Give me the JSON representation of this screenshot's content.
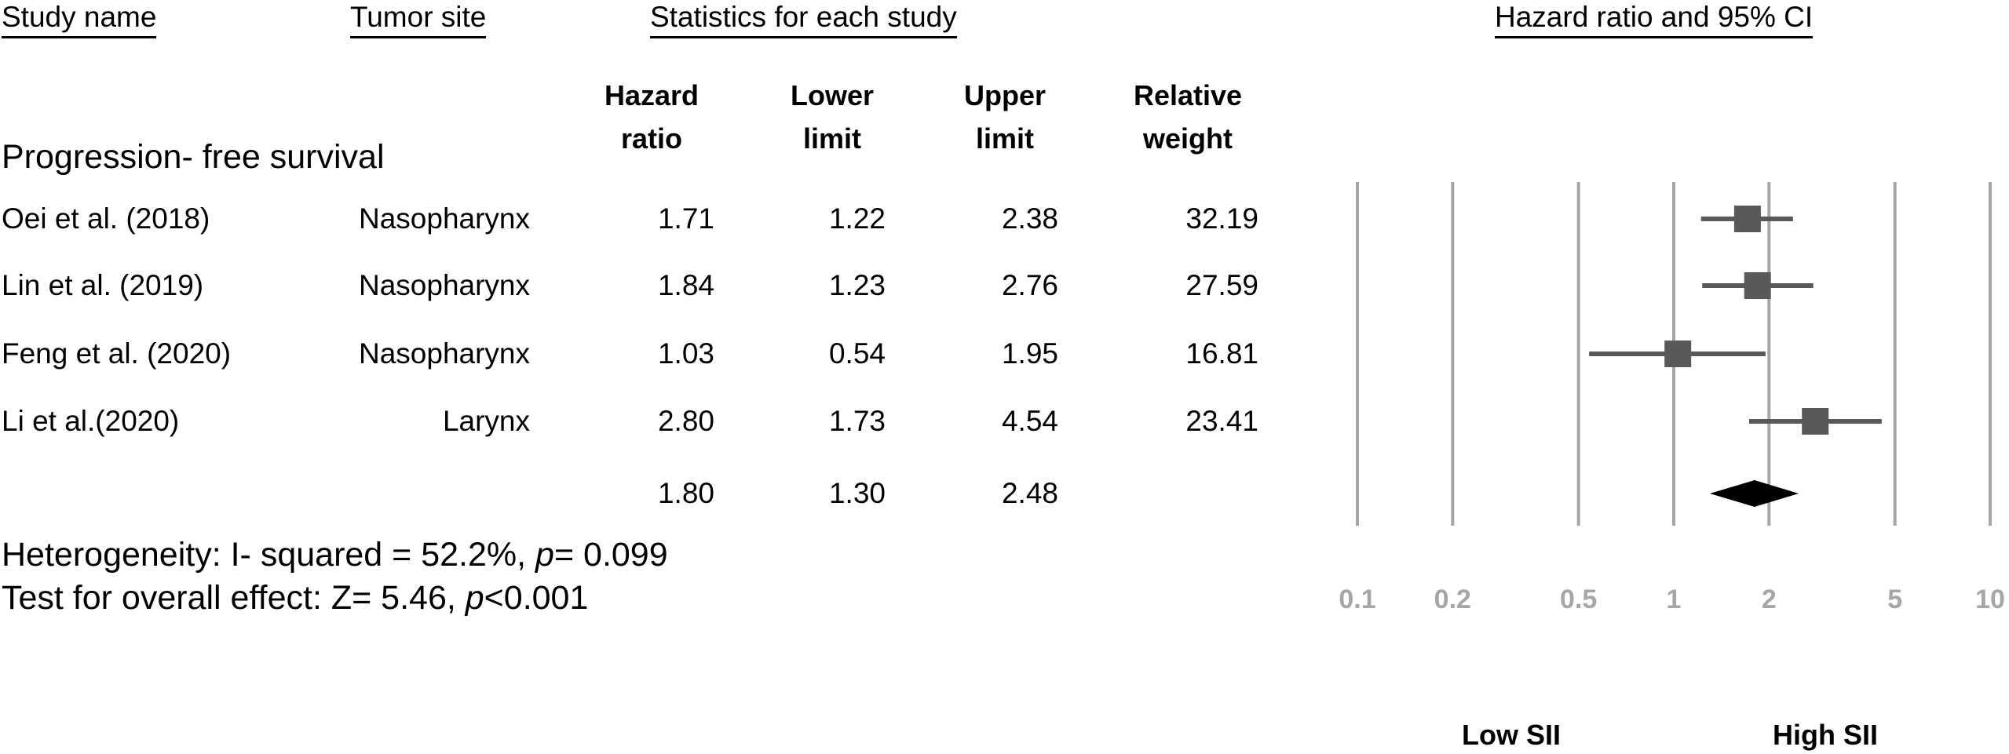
{
  "headers": {
    "study_name": "Study name",
    "tumor_site": "Tumor site",
    "statistics": "Statistics for each study",
    "ci": "Hazard ratio and 95% CI"
  },
  "columns": {
    "hr": [
      "Hazard",
      "ratio"
    ],
    "lower": [
      "Lower",
      "limit"
    ],
    "upper": [
      "Upper",
      "limit"
    ],
    "weight": [
      "Relative",
      "weight"
    ]
  },
  "section_title": "Progression- free survival",
  "heterogeneity": {
    "prefix": "Heterogeneity: I- squared = 52.2%, ",
    "p_label": "p",
    "p_value": "= 0.099"
  },
  "overall_effect": {
    "prefix": "Test for overall effect: Z= 5.46, ",
    "p_label": "p",
    "p_value": "<0.001"
  },
  "side_labels": {
    "left": "Low SII",
    "right": "High SII"
  },
  "chart_data": {
    "type": "forest",
    "x_scale": "log",
    "xlim": [
      0.1,
      10
    ],
    "x_ticks": [
      0.1,
      0.2,
      0.5,
      1,
      2,
      5,
      10
    ],
    "x_tick_labels": [
      "0.1",
      "0.2",
      "0.5",
      "1",
      "2",
      "5",
      "10"
    ],
    "grid": true,
    "studies": [
      {
        "name": "Oei et al. (2018)",
        "site": "Nasopharynx",
        "hr": 1.71,
        "lower": 1.22,
        "upper": 2.38,
        "weight": 32.19,
        "hr_text": "1.71",
        "lower_text": "1.22",
        "upper_text": "2.38",
        "weight_text": "32.19"
      },
      {
        "name": "Lin et al. (2019)",
        "site": "Nasopharynx",
        "hr": 1.84,
        "lower": 1.23,
        "upper": 2.76,
        "weight": 27.59,
        "hr_text": "1.84",
        "lower_text": "1.23",
        "upper_text": "2.76",
        "weight_text": "27.59"
      },
      {
        "name": "Feng et al. (2020)",
        "site": "Nasopharynx",
        "hr": 1.03,
        "lower": 0.54,
        "upper": 1.95,
        "weight": 16.81,
        "hr_text": "1.03",
        "lower_text": "0.54",
        "upper_text": "1.95",
        "weight_text": "16.81"
      },
      {
        "name": "Li et al.(2020)",
        "site": "Larynx",
        "hr": 2.8,
        "lower": 1.73,
        "upper": 4.54,
        "weight": 23.41,
        "hr_text": "2.80",
        "lower_text": "1.73",
        "upper_text": "4.54",
        "weight_text": "23.41"
      }
    ],
    "overall": {
      "hr": 1.8,
      "lower": 1.3,
      "upper": 2.48,
      "hr_text": "1.80",
      "lower_text": "1.30",
      "upper_text": "2.48"
    },
    "colors": {
      "marker": "#595959",
      "diamond": "#000000",
      "grid": "#a6a6a6"
    }
  }
}
